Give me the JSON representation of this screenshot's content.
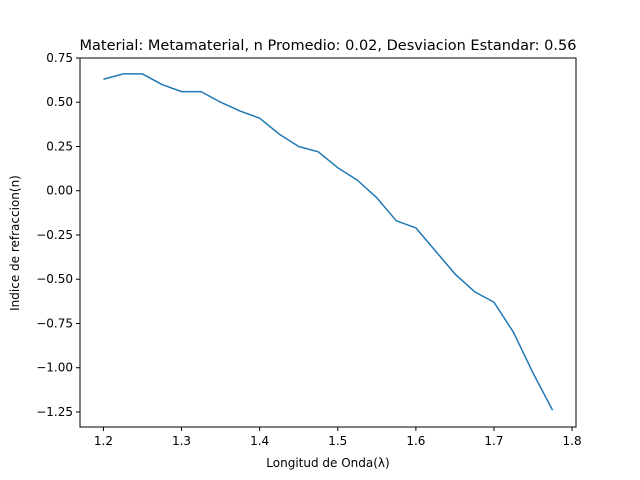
{
  "chart_data": {
    "type": "line",
    "title": "Material: Metamaterial, n Promedio: 0.02, Desviacion Estandar: 0.56",
    "xlabel": "Longitud de Onda(λ)",
    "ylabel": "Indice de refraccion(n)",
    "xlim": [
      1.17,
      1.805
    ],
    "ylim": [
      -1.335,
      0.75
    ],
    "xticks": [
      1.2,
      1.3,
      1.4,
      1.5,
      1.6,
      1.7,
      1.8
    ],
    "xtick_labels": [
      "1.2",
      "1.3",
      "1.4",
      "1.5",
      "1.6",
      "1.7",
      "1.8"
    ],
    "yticks": [
      0.75,
      0.5,
      0.25,
      0.0,
      -0.25,
      -0.5,
      -0.75,
      -1.0,
      -1.25
    ],
    "ytick_labels": [
      "0.75",
      "0.50",
      "0.25",
      "0.00",
      "−0.25",
      "−0.50",
      "−0.75",
      "−1.00",
      "−1.25"
    ],
    "grid": false,
    "series": [
      {
        "color": "#1f77b4",
        "x": [
          1.2,
          1.225,
          1.25,
          1.275,
          1.3,
          1.325,
          1.35,
          1.375,
          1.4,
          1.425,
          1.45,
          1.475,
          1.5,
          1.525,
          1.55,
          1.575,
          1.6,
          1.625,
          1.65,
          1.675,
          1.7,
          1.725,
          1.75,
          1.775
        ],
        "y": [
          0.63,
          0.66,
          0.66,
          0.6,
          0.56,
          0.56,
          0.5,
          0.45,
          0.41,
          0.32,
          0.25,
          0.22,
          0.13,
          0.06,
          -0.04,
          -0.17,
          -0.21,
          -0.34,
          -0.47,
          -0.57,
          -0.63,
          -0.8,
          -1.03,
          -1.24
        ]
      }
    ]
  }
}
